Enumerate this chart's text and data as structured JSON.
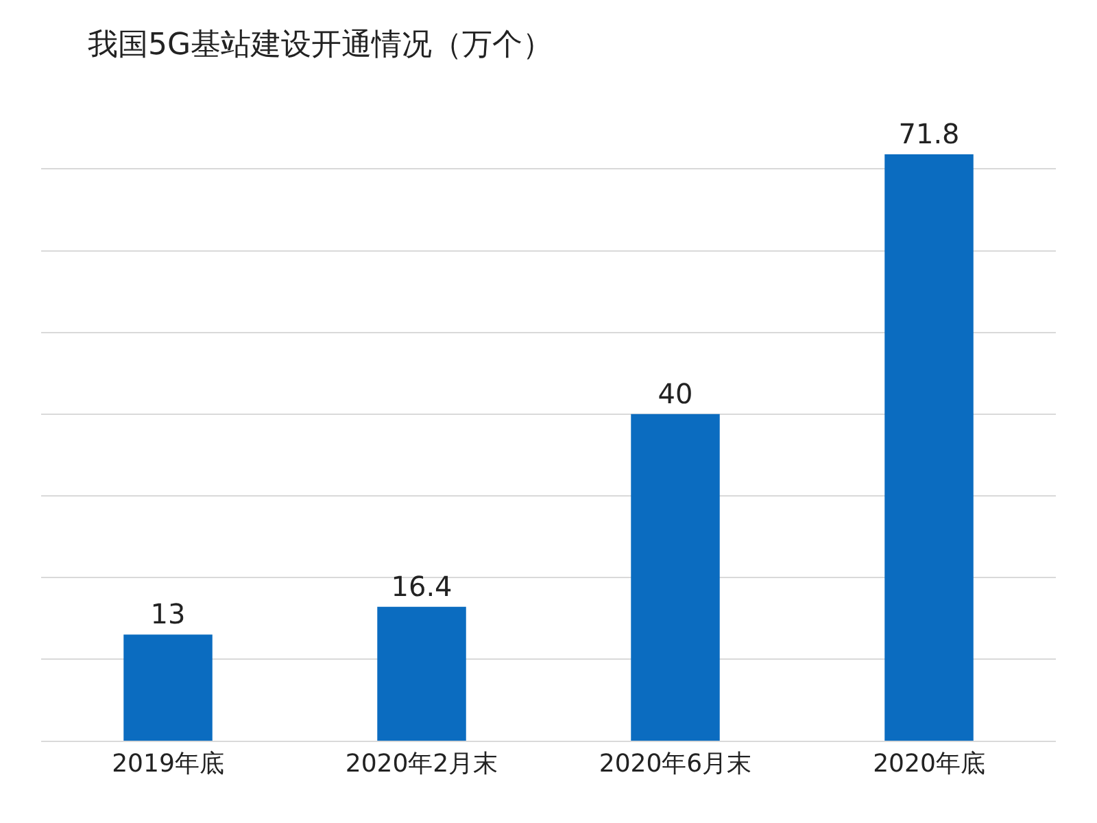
{
  "chart_data": {
    "type": "bar",
    "title": "我国5G基站建设开通情况（万个）",
    "categories": [
      "2019年底",
      "2020年2月末",
      "2020年6月末",
      "2020年底"
    ],
    "values": [
      13,
      16.4,
      40,
      71.8
    ],
    "color": "#0b6cc0",
    "yticks": [
      {
        "value": 0,
        "label": null
      },
      {
        "value": 10,
        "label": null
      },
      {
        "value": 20,
        "label": null
      },
      {
        "value": 30,
        "label": null
      },
      {
        "value": 40,
        "label": null
      },
      {
        "value": 50,
        "label": null
      },
      {
        "value": 60,
        "label": null
      },
      {
        "value": 70,
        "label": null
      }
    ],
    "grid": "y",
    "tick_labels": "x",
    "data_labels": true,
    "legend": false
  }
}
